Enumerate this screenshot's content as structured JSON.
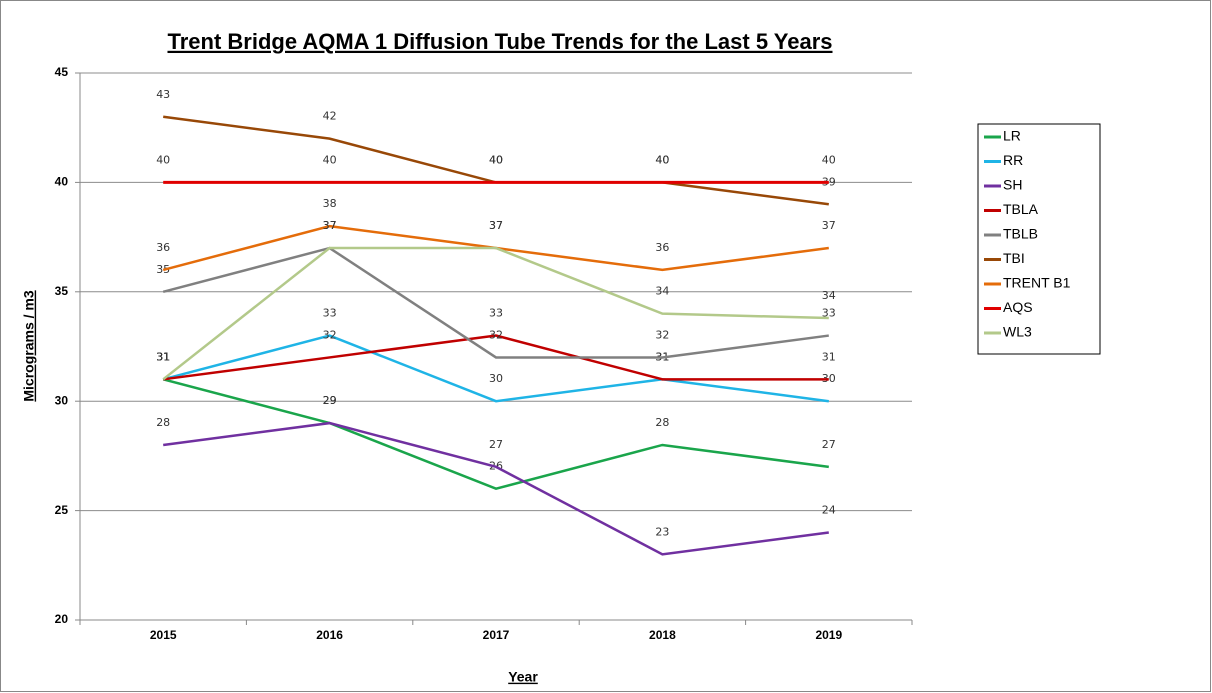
{
  "chart_data": {
    "type": "line",
    "title": "Trent Bridge AQMA 1 Diffusion Tube Trends for the Last 5 Years",
    "x_label": "Year",
    "y_label": "Micrograms / m3",
    "categories": [
      "2015",
      "2016",
      "2017",
      "2018",
      "2019"
    ],
    "ylim": [
      20,
      45
    ],
    "yticks": [
      20,
      25,
      30,
      35,
      40,
      45
    ],
    "grid": true,
    "legend": "right",
    "series": [
      {
        "name": "LR",
        "color": "#1aa54b",
        "values": [
          31,
          29,
          26,
          28,
          27
        ]
      },
      {
        "name": "RR",
        "color": "#1fb4e6",
        "values": [
          31,
          33,
          30,
          31,
          30
        ]
      },
      {
        "name": "SH",
        "color": "#7030a0",
        "values": [
          28,
          29,
          27,
          23,
          24
        ]
      },
      {
        "name": "TBLA",
        "color": "#c00000",
        "values": [
          31,
          32,
          33,
          31,
          31
        ]
      },
      {
        "name": "TBLB",
        "color": "#808080",
        "values": [
          35,
          37,
          32,
          32,
          33
        ]
      },
      {
        "name": "TBI",
        "color": "#984807",
        "values": [
          43,
          42,
          40,
          40,
          39
        ]
      },
      {
        "name": "TRENT B1",
        "color": "#e46c0a",
        "values": [
          36,
          38,
          37,
          36,
          37
        ]
      },
      {
        "name": "AQS",
        "color": "#e00000",
        "values": [
          40,
          40,
          40,
          40,
          40
        ]
      },
      {
        "name": "WL3",
        "color": "#b3c98a",
        "values": [
          31,
          37,
          37,
          34,
          33.8
        ],
        "value_labels": [
          "31",
          "37",
          "37",
          "34",
          "34"
        ]
      }
    ]
  }
}
